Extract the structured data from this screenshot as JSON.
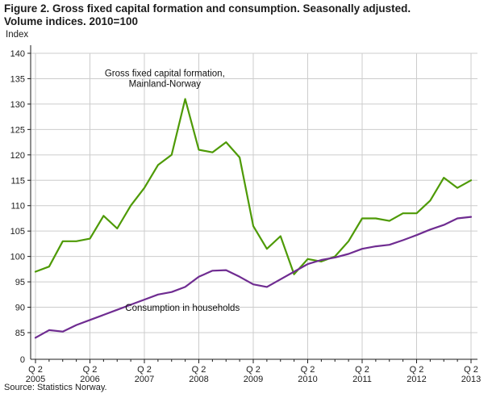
{
  "header": {
    "title_lines": [
      "Figure 2. Gross fixed capital formation and consumption. Seasonally adjusted.",
      "Volume indices. 2010=100"
    ]
  },
  "footer": {
    "source": "Source: Statistics Norway."
  },
  "chart_data": {
    "type": "line",
    "title": "Figure 2. Gross fixed capital formation and consumption. Seasonally adjusted. Volume indices. 2010=100",
    "ylabel": "Index",
    "grid": true,
    "legend_position": "inline-annotations",
    "ylim_display": [
      85,
      140
    ],
    "y_ticks": [
      140,
      135,
      130,
      125,
      120,
      115,
      110,
      105,
      100,
      95,
      90,
      85
    ],
    "y_origin_label": "0",
    "x_quarter_label": "Q 2",
    "x_year_labels": [
      "2005",
      "2006",
      "2007",
      "2008",
      "2009",
      "2010",
      "2011",
      "2012",
      "2013"
    ],
    "quarters": [
      "2005Q2",
      "2005Q3",
      "2005Q4",
      "2006Q1",
      "2006Q2",
      "2006Q3",
      "2006Q4",
      "2007Q1",
      "2007Q2",
      "2007Q3",
      "2007Q4",
      "2008Q1",
      "2008Q2",
      "2008Q3",
      "2008Q4",
      "2009Q1",
      "2009Q2",
      "2009Q3",
      "2009Q4",
      "2010Q1",
      "2010Q2",
      "2010Q3",
      "2010Q4",
      "2011Q1",
      "2011Q2",
      "2011Q3",
      "2011Q4",
      "2012Q1",
      "2012Q2",
      "2012Q3",
      "2012Q4",
      "2013Q1",
      "2013Q2"
    ],
    "series": [
      {
        "name": "Gross fixed capital formation, Mainland-Norway",
        "color": "#4e9a06",
        "values": [
          97,
          98,
          103,
          103,
          103.5,
          108,
          105.5,
          110,
          113.5,
          118,
          120,
          131,
          121,
          120.5,
          122.5,
          119.5,
          106,
          101.5,
          104,
          96.5,
          99.5,
          99,
          100,
          103,
          107.5,
          107.5,
          107,
          108.5,
          108.5,
          111,
          115.5,
          113.5,
          115
        ]
      },
      {
        "name": "Consumption in households",
        "color": "#6f2c91",
        "values": [
          84,
          85.5,
          85.2,
          86.5,
          87.5,
          88.5,
          89.5,
          90.5,
          91.5,
          92.5,
          93,
          94,
          96,
          97.2,
          97.3,
          96,
          94.5,
          94,
          95.5,
          97,
          98.5,
          99.3,
          99.8,
          100.5,
          101.5,
          102,
          102.3,
          103.2,
          104.2,
          105.3,
          106.2,
          107.5,
          107.8
        ]
      }
    ],
    "annotations": [
      {
        "lines": [
          "Gross fixed capital formation,",
          "Mainland-Norway"
        ],
        "anchor_index": 9.5,
        "anchor_value": 135.5
      },
      {
        "lines": [
          "Consumption in households"
        ],
        "anchor_index": 10.8,
        "anchor_value": 89.3
      }
    ]
  }
}
